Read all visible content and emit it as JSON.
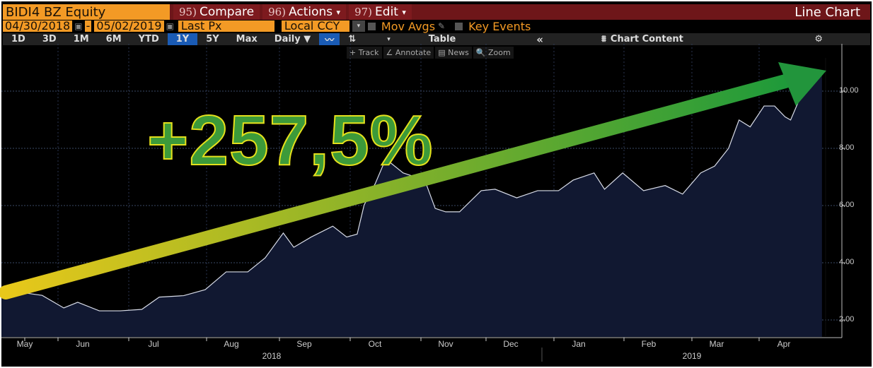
{
  "header": {
    "ticker": "BIDI4 BZ Equity",
    "compare": {
      "num": "95)",
      "label": "Compare"
    },
    "actions": {
      "num": "96)",
      "label": "Actions",
      "caret": "▾"
    },
    "edit": {
      "num": "97)",
      "label": "Edit",
      "caret": "▾"
    },
    "chart_type": "Line Chart"
  },
  "range": {
    "start": "04/30/2018",
    "sep": "-",
    "end": "05/02/2019",
    "field": "Last Px",
    "currency": "Local CCY",
    "mov_avgs": "Mov Avgs",
    "key_events": "Key Events"
  },
  "periods": [
    "1D",
    "3D",
    "1M",
    "6M",
    "YTD",
    "1Y",
    "5Y",
    "Max"
  ],
  "active_period": "1Y",
  "frequency": "Daily ▼",
  "toolbar": {
    "table": "Table",
    "collapse": "«",
    "chart_content": "Chart Content",
    "settings": "⚙"
  },
  "tools": [
    "+ Track",
    "∠ Annotate",
    "▤ News",
    "🔍 Zoom"
  ],
  "annotation": {
    "text": "+257,5%",
    "arrow_start": "#e8c81a",
    "arrow_end": "#1f9a3a"
  },
  "chart_data": {
    "type": "area",
    "title": "BIDI4 BZ Equity — Last Px",
    "yticks": [
      "2.00",
      "4.00",
      "6.00",
      "8.00",
      "10.00"
    ],
    "ylim": [
      1.5,
      11.5
    ],
    "xticks": [
      "May",
      "Jun",
      "Jul",
      "Aug",
      "Sep",
      "Oct",
      "Nov",
      "Dec",
      "Jan",
      "Feb",
      "Mar",
      "Apr"
    ],
    "years": [
      "2018",
      "2019"
    ],
    "x_unit": "months since 2018-05-01",
    "points": [
      [
        -0.35,
        3.06
      ],
      [
        0.25,
        2.86
      ],
      [
        0.56,
        2.42
      ],
      [
        0.76,
        2.62
      ],
      [
        1.07,
        2.32
      ],
      [
        1.37,
        2.32
      ],
      [
        1.68,
        2.37
      ],
      [
        1.93,
        2.8
      ],
      [
        2.28,
        2.85
      ],
      [
        2.59,
        3.06
      ],
      [
        2.89,
        3.68
      ],
      [
        3.2,
        3.68
      ],
      [
        3.45,
        4.17
      ],
      [
        3.71,
        5.04
      ],
      [
        3.86,
        4.54
      ],
      [
        4.11,
        4.9
      ],
      [
        4.42,
        5.28
      ],
      [
        4.62,
        4.9
      ],
      [
        4.77,
        5.0
      ],
      [
        4.87,
        6.02
      ],
      [
        5.03,
        6.77
      ],
      [
        5.18,
        7.63
      ],
      [
        5.43,
        7.14
      ],
      [
        5.74,
        6.89
      ],
      [
        5.89,
        5.9
      ],
      [
        6.04,
        5.78
      ],
      [
        6.24,
        5.78
      ],
      [
        6.55,
        6.52
      ],
      [
        6.75,
        6.57
      ],
      [
        7.06,
        6.27
      ],
      [
        7.36,
        6.52
      ],
      [
        7.66,
        6.52
      ],
      [
        7.87,
        6.89
      ],
      [
        8.17,
        7.14
      ],
      [
        8.32,
        6.57
      ],
      [
        8.58,
        7.14
      ],
      [
        8.88,
        6.52
      ],
      [
        9.19,
        6.7
      ],
      [
        9.44,
        6.4
      ],
      [
        9.7,
        7.14
      ],
      [
        9.9,
        7.38
      ],
      [
        10.1,
        8.0
      ],
      [
        10.25,
        8.99
      ],
      [
        10.41,
        8.75
      ],
      [
        10.61,
        9.48
      ],
      [
        10.76,
        9.48
      ],
      [
        10.91,
        9.1
      ],
      [
        10.99,
        8.99
      ],
      [
        11.12,
        9.73
      ],
      [
        11.32,
        10.47
      ],
      [
        11.44,
        10.72
      ]
    ],
    "colors": {
      "line": "#d8dce8",
      "fill": "#111831"
    }
  }
}
